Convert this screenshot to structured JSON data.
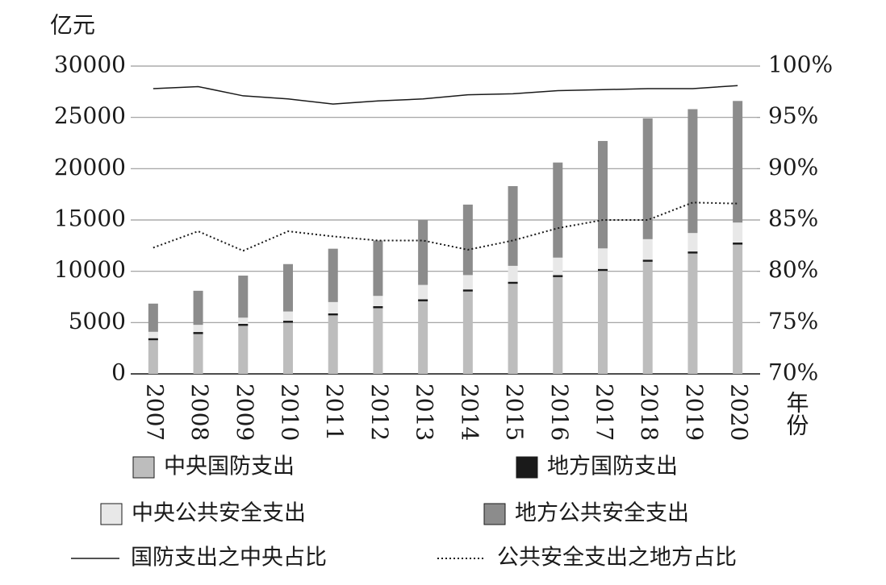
{
  "chart_data": {
    "type": "bar",
    "stacked": true,
    "y_label": "亿元",
    "x_label": "年份",
    "categories": [
      "2007",
      "2008",
      "2009",
      "2010",
      "2011",
      "2012",
      "2013",
      "2014",
      "2015",
      "2016",
      "2017",
      "2018",
      "2019",
      "2020"
    ],
    "series": [
      {
        "name": "中央国防支出",
        "color": "#bdbdbd",
        "values": [
          3400,
          4000,
          4800,
          5100,
          5800,
          6500,
          7150,
          8100,
          8850,
          9500,
          10100,
          11000,
          11800,
          12650
        ]
      },
      {
        "name": "地方国防支出",
        "color": "#1a1a1a",
        "values": [
          80,
          80,
          80,
          80,
          100,
          100,
          120,
          130,
          130,
          130,
          130,
          130,
          130,
          150
        ]
      },
      {
        "name": "中央公共安全支出",
        "color": "#e8e8e8",
        "values": [
          620,
          700,
          600,
          900,
          1100,
          1000,
          1400,
          1400,
          1550,
          1700,
          2000,
          2000,
          1800,
          1950
        ]
      },
      {
        "name": "地方公共安全支出",
        "color": "#8c8c8c",
        "values": [
          2750,
          3320,
          4100,
          4620,
          5200,
          5400,
          6330,
          6870,
          7770,
          9270,
          10470,
          11770,
          12070,
          11850
        ]
      },
      {
        "name": "国防支出之中央占比",
        "type": "line",
        "axis": "y2",
        "color": "#1a1a1a",
        "style": "solid",
        "values": [
          97.8,
          98.0,
          97.1,
          96.8,
          96.3,
          96.6,
          96.8,
          97.2,
          97.3,
          97.6,
          97.7,
          97.8,
          97.8,
          98.1
        ]
      },
      {
        "name": "公共安全支出之地方占比",
        "type": "line",
        "axis": "y2",
        "color": "#1a1a1a",
        "style": "dotted",
        "values": [
          82.3,
          83.9,
          82.0,
          83.9,
          83.4,
          83.0,
          83.0,
          82.1,
          83.0,
          84.2,
          85.0,
          85.0,
          86.7,
          86.6
        ]
      }
    ],
    "ylim": [
      0,
      30000
    ],
    "yticks": [
      0,
      5000,
      10000,
      15000,
      20000,
      25000,
      30000
    ],
    "y2lim": [
      70,
      100
    ],
    "y2ticks": [
      {
        "value": 70,
        "label": "70%"
      },
      {
        "value": 75,
        "label": "75%"
      },
      {
        "value": 80,
        "label": "80%"
      },
      {
        "value": 85,
        "label": "85%"
      },
      {
        "value": 90,
        "label": "90%"
      },
      {
        "value": 95,
        "label": "95%"
      },
      {
        "value": 100,
        "label": "100%"
      }
    ],
    "grid": true
  }
}
